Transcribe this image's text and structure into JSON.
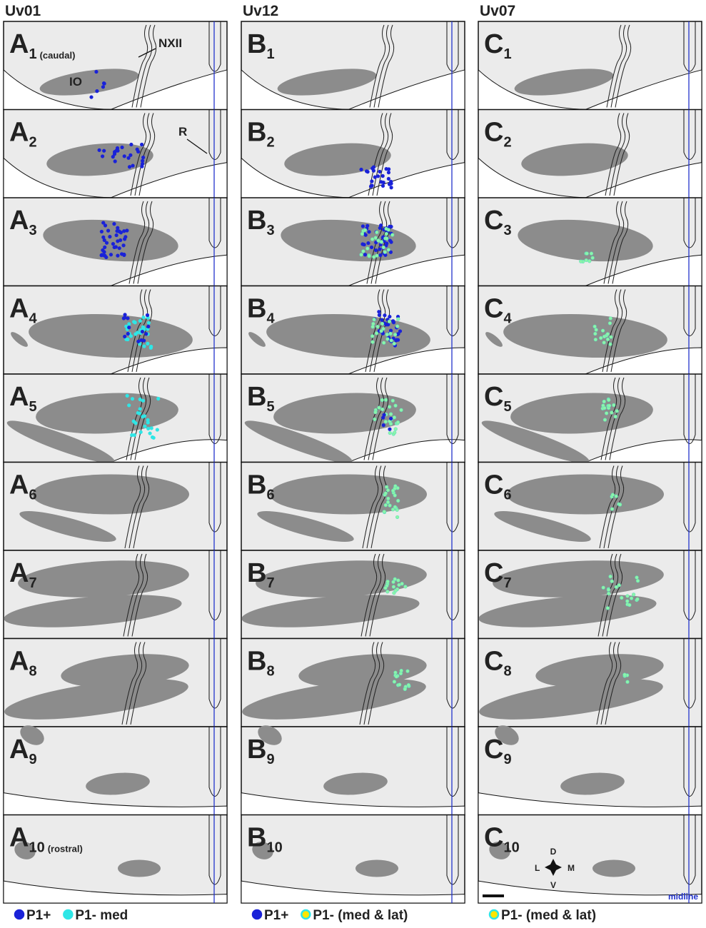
{
  "columns": [
    {
      "title": "Uv01",
      "panels": [
        {
          "letter": "A",
          "sub": "1",
          "note": "(caudal)"
        },
        {
          "letter": "A",
          "sub": "2"
        },
        {
          "letter": "A",
          "sub": "3"
        },
        {
          "letter": "A",
          "sub": "4"
        },
        {
          "letter": "A",
          "sub": "5"
        },
        {
          "letter": "A",
          "sub": "6"
        },
        {
          "letter": "A",
          "sub": "7"
        },
        {
          "letter": "A",
          "sub": "8"
        },
        {
          "letter": "A",
          "sub": "9"
        },
        {
          "letter": "A",
          "sub": "10",
          "note": "(rostral)"
        }
      ]
    },
    {
      "title": "Uv12",
      "panels": [
        {
          "letter": "B",
          "sub": "1"
        },
        {
          "letter": "B",
          "sub": "2"
        },
        {
          "letter": "B",
          "sub": "3"
        },
        {
          "letter": "B",
          "sub": "4"
        },
        {
          "letter": "B",
          "sub": "5"
        },
        {
          "letter": "B",
          "sub": "6"
        },
        {
          "letter": "B",
          "sub": "7"
        },
        {
          "letter": "B",
          "sub": "8"
        },
        {
          "letter": "B",
          "sub": "9"
        },
        {
          "letter": "B",
          "sub": "10"
        }
      ]
    },
    {
      "title": "Uv07",
      "panels": [
        {
          "letter": "C",
          "sub": "1"
        },
        {
          "letter": "C",
          "sub": "2"
        },
        {
          "letter": "C",
          "sub": "3"
        },
        {
          "letter": "C",
          "sub": "4"
        },
        {
          "letter": "C",
          "sub": "5"
        },
        {
          "letter": "C",
          "sub": "6"
        },
        {
          "letter": "C",
          "sub": "7"
        },
        {
          "letter": "C",
          "sub": "8"
        },
        {
          "letter": "C",
          "sub": "9"
        },
        {
          "letter": "C",
          "sub": "10"
        }
      ]
    }
  ],
  "annotations": {
    "nxii": "NXII",
    "io": "IO",
    "r": "R",
    "midline": "midline"
  },
  "orientation": {
    "d": "D",
    "v": "V",
    "l": "L",
    "m": "M"
  },
  "legends": [
    [
      {
        "label": "P1+"
      },
      {
        "label": "P1- med"
      }
    ],
    [
      {
        "label": "P1+"
      },
      {
        "label": "P1- (med & lat)"
      }
    ],
    [
      {
        "label": "P1- (med & lat)"
      }
    ]
  ]
}
